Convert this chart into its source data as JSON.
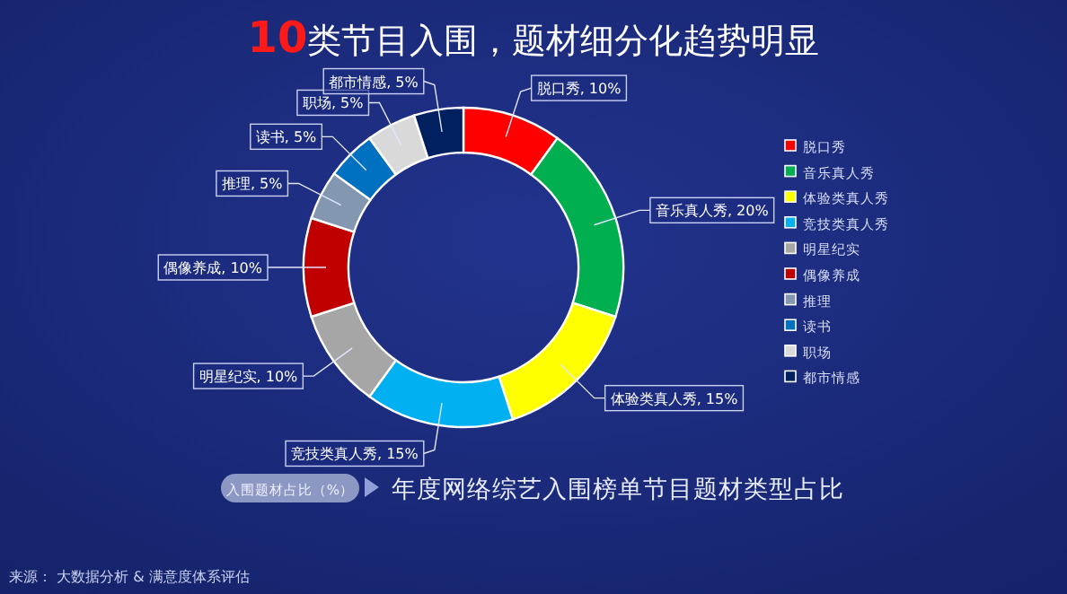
{
  "chart_data": {
    "type": "donut",
    "title": "10类节目入围，题材细分化趋势明显",
    "subtitle": "年度网络综艺入围榜单节目题材类型占比",
    "annotations": [
      "入围题材占比（%）",
      "来源： 大数据分析 & 满意度体系评估"
    ],
    "categories": [
      "脱口秀",
      "音乐真人秀",
      "体验类真人秀",
      "竞技类真人秀",
      "明星纪实",
      "偶像养成",
      "推理",
      "读书",
      "职场",
      "都市情感"
    ],
    "values": [
      10,
      20,
      15,
      15,
      10,
      10,
      5,
      5,
      5,
      5
    ],
    "colors": [
      "#ff0000",
      "#00b050",
      "#ffff00",
      "#00b0f0",
      "#a6a6a6",
      "#c00000",
      "#8497b0",
      "#0070c0",
      "#d9d9d9",
      "#002060"
    ],
    "value_labels": [
      "脱口秀, 10%",
      "音乐真人秀, 20%",
      "体验类真人秀, 15%",
      "竞技类真人秀, 15%",
      "明星纪实, 10%",
      "偶像养成, 10%",
      "推理, 5%",
      "读书, 5%",
      "职场, 5%",
      "都市情感, 5%"
    ],
    "legend": "right"
  }
}
